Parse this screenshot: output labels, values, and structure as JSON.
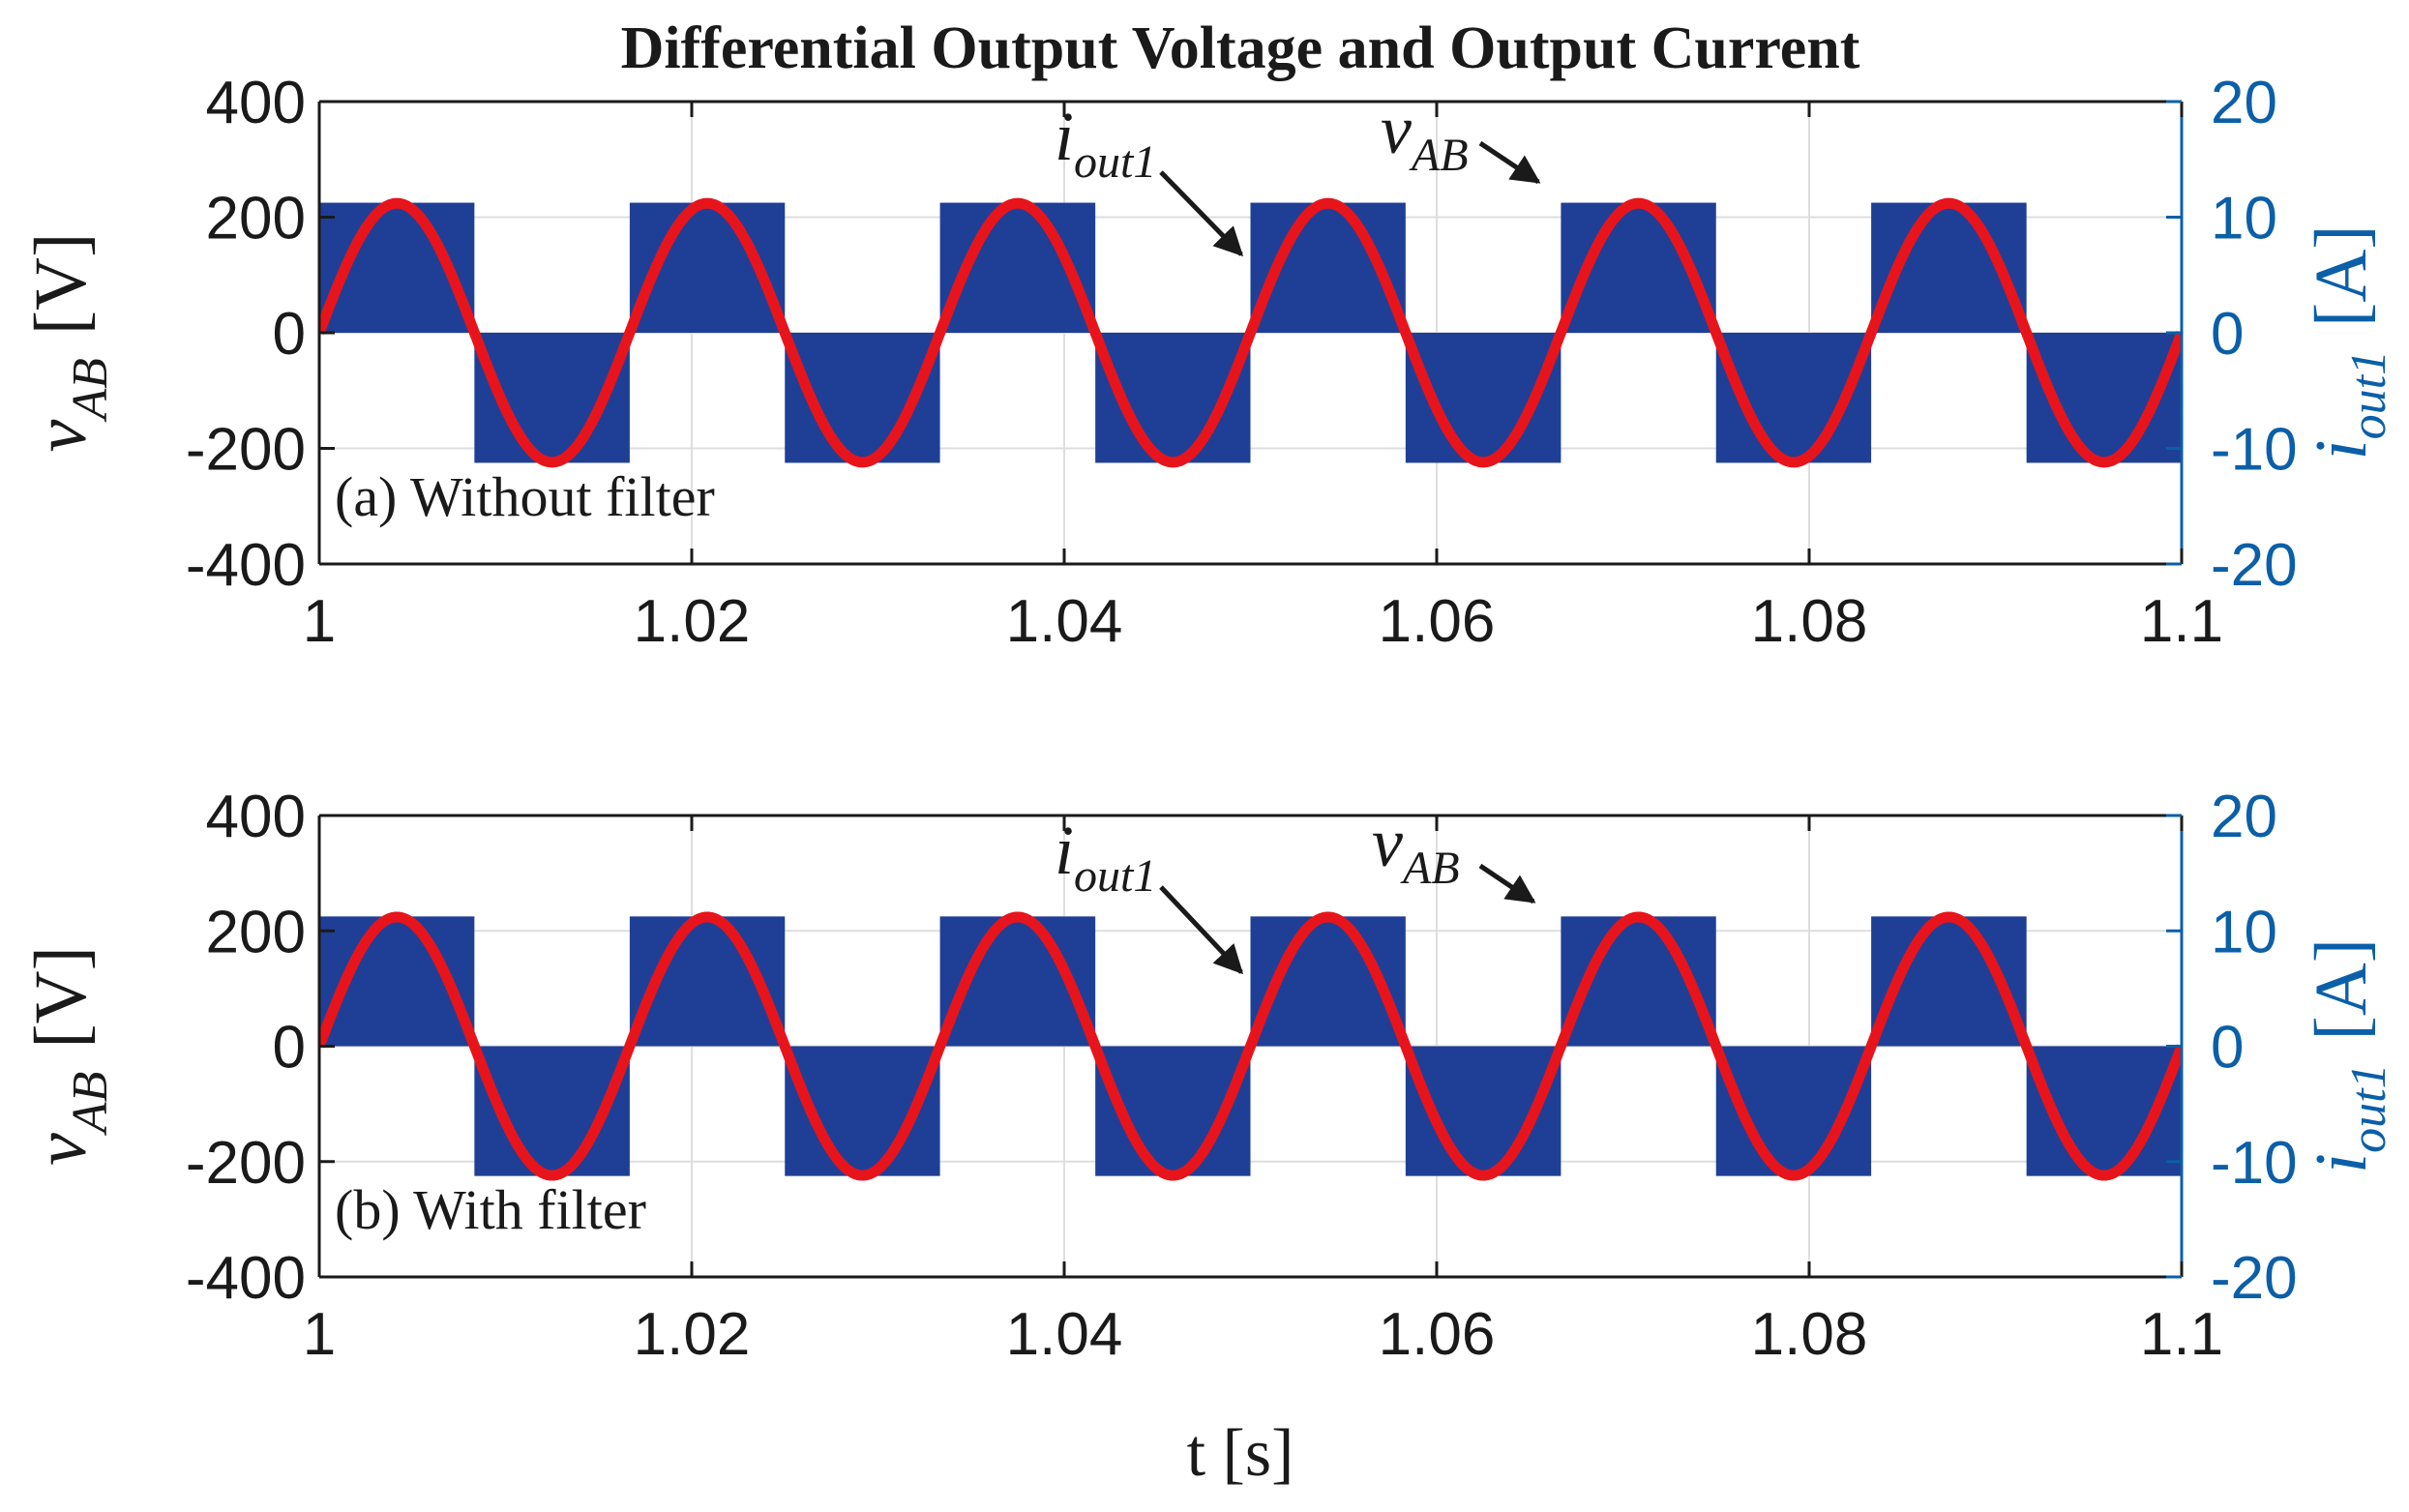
{
  "title": "Differential Output Voltage and Output Current",
  "chart_data": [
    {
      "type": "line",
      "panel_label": "(a) Without filter",
      "xlabel": "t [s]",
      "ylabel_left": {
        "main": "v",
        "sub": "AB",
        "unit": "[V]"
      },
      "ylabel_right": {
        "main": "i",
        "sub": "out1",
        "unit": "[A]"
      },
      "xlim": [
        1,
        1.1
      ],
      "ylim_left": [
        -400,
        400
      ],
      "ylim_right": [
        -20,
        20
      ],
      "xticks": [
        "1",
        "1.02",
        "1.04",
        "1.06",
        "1.08",
        "1.1"
      ],
      "yticks_left": [
        "400",
        "200",
        "0",
        "-200",
        "-400"
      ],
      "yticks_right": [
        "20",
        "10",
        "0",
        "-10",
        "-20"
      ],
      "grid": true,
      "colors": {
        "voltage": "#1f3f96",
        "current": "#e8141c",
        "right_axis": "#0b5fa8"
      },
      "series": [
        {
          "name": "v_AB",
          "axis": "left",
          "waveform": "PWM square wave",
          "amplitude": 225,
          "fundamental_hz": 60,
          "segments": [
            {
              "t_start": 1.0,
              "t_end": 1.00833,
              "value": 225
            },
            {
              "t_start": 1.00833,
              "t_end": 1.01667,
              "value": -225
            },
            {
              "t_start": 1.01667,
              "t_end": 1.025,
              "value": 225
            },
            {
              "t_start": 1.025,
              "t_end": 1.03333,
              "value": -225
            },
            {
              "t_start": 1.03333,
              "t_end": 1.04167,
              "value": 225
            },
            {
              "t_start": 1.04167,
              "t_end": 1.05,
              "value": -225
            },
            {
              "t_start": 1.05,
              "t_end": 1.05833,
              "value": 225
            },
            {
              "t_start": 1.05833,
              "t_end": 1.06667,
              "value": -225
            },
            {
              "t_start": 1.06667,
              "t_end": 1.075,
              "value": 225
            },
            {
              "t_start": 1.075,
              "t_end": 1.08333,
              "value": -225
            },
            {
              "t_start": 1.08333,
              "t_end": 1.09167,
              "value": 225
            },
            {
              "t_start": 1.09167,
              "t_end": 1.1,
              "value": -225
            }
          ]
        },
        {
          "name": "i_out1",
          "axis": "right",
          "waveform": "sinusoid",
          "amplitude": 11.2,
          "frequency_hz": 60,
          "phase_deg": 0
        }
      ],
      "annotations": [
        {
          "target": "i_out1",
          "text_main": "i",
          "text_sub": "out1",
          "points_to": {
            "x": 1.0505,
            "y": 170
          }
        },
        {
          "target": "v_AB",
          "text_main": "v",
          "text_sub": "AB",
          "points_to": {
            "x": 1.067,
            "y": 232
          }
        }
      ]
    },
    {
      "type": "line",
      "panel_label": "(b) With filter",
      "xlabel": "t [s]",
      "ylabel_left": {
        "main": "v",
        "sub": "AB",
        "unit": "[V]"
      },
      "ylabel_right": {
        "main": "i",
        "sub": "out1",
        "unit": "[A]"
      },
      "xlim": [
        1,
        1.1
      ],
      "ylim_left": [
        -400,
        400
      ],
      "ylim_right": [
        -20,
        20
      ],
      "xticks": [
        "1",
        "1.02",
        "1.04",
        "1.06",
        "1.08",
        "1.1"
      ],
      "yticks_left": [
        "400",
        "200",
        "0",
        "-200",
        "-400"
      ],
      "yticks_right": [
        "20",
        "10",
        "0",
        "-10",
        "-20"
      ],
      "grid": true,
      "colors": {
        "voltage": "#1f3f96",
        "current": "#e8141c",
        "right_axis": "#0b5fa8"
      },
      "series": [
        {
          "name": "v_AB",
          "axis": "left",
          "waveform": "PWM square wave",
          "amplitude": 225,
          "fundamental_hz": 60,
          "segments": [
            {
              "t_start": 1.0,
              "t_end": 1.00833,
              "value": 225
            },
            {
              "t_start": 1.00833,
              "t_end": 1.01667,
              "value": -225
            },
            {
              "t_start": 1.01667,
              "t_end": 1.025,
              "value": 225
            },
            {
              "t_start": 1.025,
              "t_end": 1.03333,
              "value": -225
            },
            {
              "t_start": 1.03333,
              "t_end": 1.04167,
              "value": 225
            },
            {
              "t_start": 1.04167,
              "t_end": 1.05,
              "value": -225
            },
            {
              "t_start": 1.05,
              "t_end": 1.05833,
              "value": 225
            },
            {
              "t_start": 1.05833,
              "t_end": 1.06667,
              "value": -225
            },
            {
              "t_start": 1.06667,
              "t_end": 1.075,
              "value": 225
            },
            {
              "t_start": 1.075,
              "t_end": 1.08333,
              "value": -225
            },
            {
              "t_start": 1.08333,
              "t_end": 1.09167,
              "value": 225
            },
            {
              "t_start": 1.09167,
              "t_end": 1.1,
              "value": -225
            }
          ]
        },
        {
          "name": "i_out1",
          "axis": "right",
          "waveform": "sinusoid",
          "amplitude": 11.2,
          "frequency_hz": 60,
          "phase_deg": 0
        }
      ],
      "annotations": [
        {
          "target": "i_out1",
          "text_main": "i",
          "text_sub": "out1",
          "points_to": {
            "x": 1.0505,
            "y": 170
          }
        },
        {
          "target": "v_AB",
          "text_main": "v",
          "text_sub": "AB",
          "points_to": {
            "x": 1.0665,
            "y": 232
          }
        }
      ]
    }
  ]
}
